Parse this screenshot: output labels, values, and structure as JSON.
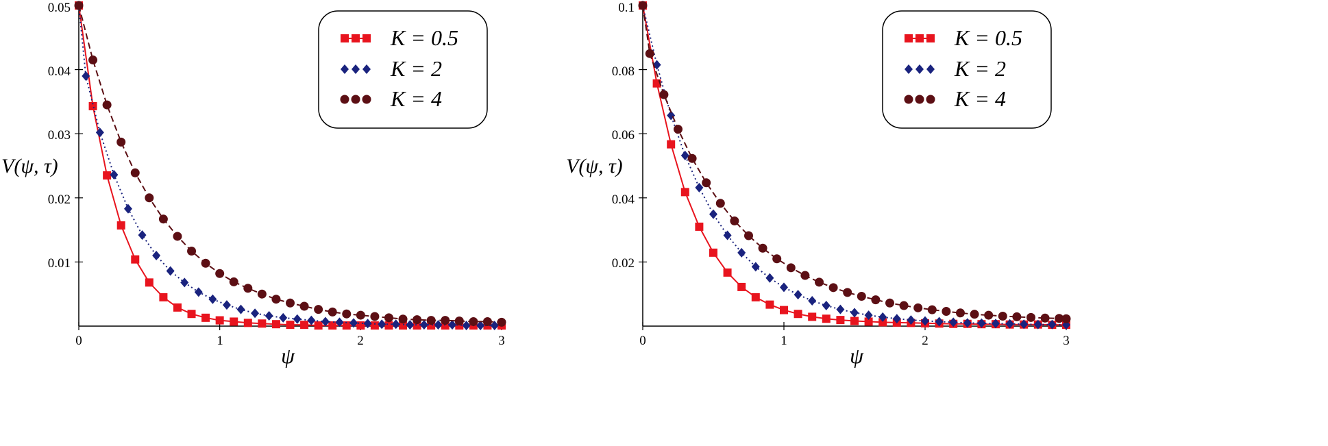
{
  "chart_data": [
    {
      "type": "line",
      "ylabel": "V(ψ, τ)",
      "xlabel": "ψ",
      "xlim": [
        0,
        3
      ],
      "ylim": [
        0,
        0.05
      ],
      "xticks": [
        "0",
        "1",
        "2",
        "3"
      ],
      "yticks": [
        "0.01",
        "0.02",
        "0.03",
        "0.04",
        "0.05"
      ],
      "legend_position": "top-right",
      "grid": false,
      "series": [
        {
          "name": "K = 0.5",
          "color": "#e8141e",
          "marker": "square",
          "line": "solid",
          "x": [
            0,
            0.1,
            0.2,
            0.3,
            0.4,
            0.5,
            0.6,
            0.7,
            0.8,
            0.9,
            1.0,
            1.1,
            1.2,
            1.3,
            1.4,
            1.5,
            1.6,
            1.7,
            1.8,
            1.9,
            2.0,
            2.1,
            2.2,
            2.3,
            2.4,
            2.5,
            2.6,
            2.7,
            2.8,
            2.9,
            3.0
          ],
          "values": [
            0.05,
            0.0343,
            0.0235,
            0.0157,
            0.0104,
            0.0068,
            0.0045,
            0.0029,
            0.0019,
            0.0013,
            0.0009,
            0.0007,
            0.0005,
            0.0004,
            0.0003,
            0.0002,
            0.0002,
            0.0001,
            0.0001,
            0.0001,
            0.0001,
            0.0001,
            0.0001,
            0.0001,
            0.0001,
            0.0001,
            0.0001,
            0.0001,
            0.0001,
            0.0001,
            0.0001
          ]
        },
        {
          "name": "K = 2",
          "color": "#1a237e",
          "marker": "diamond",
          "line": "dotted",
          "x": [
            0,
            0.05,
            0.15,
            0.25,
            0.35,
            0.45,
            0.55,
            0.65,
            0.75,
            0.85,
            0.95,
            1.05,
            1.15,
            1.25,
            1.35,
            1.45,
            1.55,
            1.65,
            1.75,
            1.85,
            1.95,
            2.05,
            2.15,
            2.25,
            2.35,
            2.45,
            2.55,
            2.65,
            2.75,
            2.85,
            2.95
          ],
          "values": [
            0.05,
            0.039,
            0.0302,
            0.0236,
            0.0183,
            0.0142,
            0.011,
            0.0086,
            0.0068,
            0.0053,
            0.0042,
            0.0033,
            0.0026,
            0.002,
            0.0016,
            0.0013,
            0.0011,
            0.0009,
            0.0007,
            0.0006,
            0.0005,
            0.0004,
            0.0003,
            0.0003,
            0.0002,
            0.0002,
            0.0002,
            0.0002,
            0.0001,
            0.0001,
            0.0001
          ]
        },
        {
          "name": "K = 4",
          "color": "#5c0f14",
          "marker": "circle",
          "line": "dashed",
          "x": [
            0,
            0.1,
            0.2,
            0.3,
            0.4,
            0.5,
            0.6,
            0.7,
            0.8,
            0.9,
            1.0,
            1.1,
            1.2,
            1.3,
            1.4,
            1.5,
            1.6,
            1.7,
            1.8,
            1.9,
            2.0,
            2.1,
            2.2,
            2.3,
            2.4,
            2.5,
            2.6,
            2.7,
            2.8,
            2.9,
            3.0
          ],
          "values": [
            0.05,
            0.0415,
            0.0345,
            0.0287,
            0.0239,
            0.02,
            0.0167,
            0.014,
            0.0117,
            0.0098,
            0.0082,
            0.0069,
            0.0059,
            0.005,
            0.0042,
            0.0036,
            0.0031,
            0.0026,
            0.0022,
            0.0019,
            0.0017,
            0.0015,
            0.0013,
            0.0011,
            0.001,
            0.0009,
            0.0009,
            0.0008,
            0.0007,
            0.0007,
            0.0006
          ]
        }
      ]
    },
    {
      "type": "line",
      "ylabel": "V(ψ, τ)",
      "xlabel": "ψ",
      "xlim": [
        0,
        3
      ],
      "ylim": [
        0,
        0.1
      ],
      "xticks": [
        "0",
        "1",
        "2",
        "3"
      ],
      "yticks": [
        "0.02",
        "0.04",
        "0.06",
        "0.08",
        "0.1"
      ],
      "legend_position": "top-right",
      "grid": false,
      "series": [
        {
          "name": "K = 0.5",
          "color": "#e8141e",
          "marker": "square",
          "line": "solid",
          "x": [
            0,
            0.1,
            0.2,
            0.3,
            0.4,
            0.5,
            0.6,
            0.7,
            0.8,
            0.9,
            1.0,
            1.1,
            1.2,
            1.3,
            1.4,
            1.5,
            1.6,
            1.7,
            1.8,
            1.9,
            2.0,
            2.1,
            2.2,
            2.3,
            2.4,
            2.5,
            2.6,
            2.7,
            2.8,
            2.9,
            3.0
          ],
          "values": [
            0.1,
            0.0757,
            0.0567,
            0.0418,
            0.031,
            0.0229,
            0.0167,
            0.0122,
            0.009,
            0.0067,
            0.005,
            0.0038,
            0.0029,
            0.0023,
            0.0019,
            0.0016,
            0.0014,
            0.0012,
            0.0011,
            0.001,
            0.0009,
            0.0008,
            0.0007,
            0.0007,
            0.0006,
            0.0006,
            0.0005,
            0.0005,
            0.0005,
            0.0004,
            0.0004
          ]
        },
        {
          "name": "K = 2",
          "color": "#1a237e",
          "marker": "diamond",
          "line": "dotted",
          "x": [
            0,
            0.1,
            0.2,
            0.3,
            0.4,
            0.5,
            0.6,
            0.7,
            0.8,
            0.9,
            1.0,
            1.1,
            1.2,
            1.3,
            1.4,
            1.5,
            1.6,
            1.7,
            1.8,
            1.9,
            2.0,
            2.1,
            2.2,
            2.3,
            2.4,
            2.5,
            2.6,
            2.7,
            2.8,
            2.9,
            3.0
          ],
          "values": [
            0.1,
            0.0815,
            0.0657,
            0.0532,
            0.0432,
            0.0349,
            0.0283,
            0.0229,
            0.0185,
            0.015,
            0.0121,
            0.0098,
            0.0079,
            0.0064,
            0.0052,
            0.0042,
            0.0034,
            0.0028,
            0.0023,
            0.0019,
            0.0016,
            0.0014,
            0.0012,
            0.001,
            0.0009,
            0.0008,
            0.0007,
            0.0006,
            0.0005,
            0.0005,
            0.0004
          ]
        },
        {
          "name": "K = 4",
          "color": "#5c0f14",
          "marker": "circle",
          "line": "dashed",
          "x": [
            0,
            0.05,
            0.15,
            0.25,
            0.35,
            0.45,
            0.55,
            0.65,
            0.75,
            0.85,
            0.95,
            1.05,
            1.15,
            1.25,
            1.35,
            1.45,
            1.55,
            1.65,
            1.75,
            1.85,
            1.95,
            2.05,
            2.15,
            2.25,
            2.35,
            2.45,
            2.55,
            2.65,
            2.75,
            2.85,
            2.95,
            3.0
          ],
          "values": [
            0.1,
            0.085,
            0.0722,
            0.0614,
            0.0523,
            0.0447,
            0.0383,
            0.0328,
            0.0282,
            0.0243,
            0.021,
            0.0182,
            0.0158,
            0.0137,
            0.012,
            0.0105,
            0.0093,
            0.0082,
            0.0072,
            0.0064,
            0.0057,
            0.0051,
            0.0046,
            0.0041,
            0.0037,
            0.0034,
            0.0031,
            0.0029,
            0.0027,
            0.0025,
            0.0024,
            0.0023
          ]
        }
      ]
    }
  ]
}
